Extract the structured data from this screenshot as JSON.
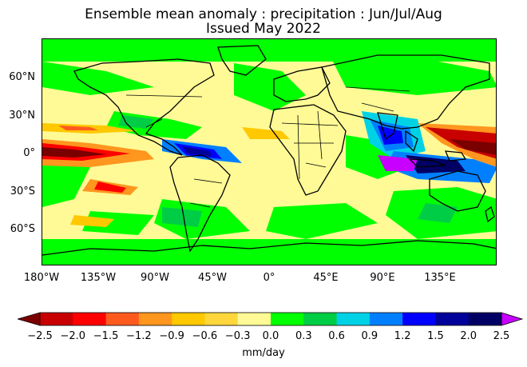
{
  "title": {
    "line1": "Ensemble mean anomaly : precipitation : Jun/Jul/Aug",
    "line2": "Issued May 2022"
  },
  "map": {
    "lat_labels": [
      "60°N",
      "30°N",
      "0°",
      "30°S",
      "60°S"
    ],
    "lon_labels": [
      "180°W",
      "135°W",
      "90°W",
      "45°W",
      "0°",
      "45°E",
      "90°E",
      "135°E"
    ]
  },
  "colorbar": {
    "units": "mm/day",
    "tick_labels": [
      "−2.5",
      "−2.0",
      "−1.5",
      "−1.2",
      "−0.9",
      "−0.6",
      "−0.3",
      "0.0",
      "0.3",
      "0.6",
      "0.9",
      "1.2",
      "1.5",
      "2.0",
      "2.5"
    ],
    "colors": [
      "#7a0000",
      "#c80000",
      "#ff0000",
      "#ff5a1e",
      "#ff961e",
      "#ffc800",
      "#ffd73c",
      "#fffa96",
      "#00ff00",
      "#00cd46",
      "#00d2e6",
      "#0080ff",
      "#0000ff",
      "#00009b",
      "#000064",
      "#c800ff"
    ],
    "extend": "both"
  }
}
